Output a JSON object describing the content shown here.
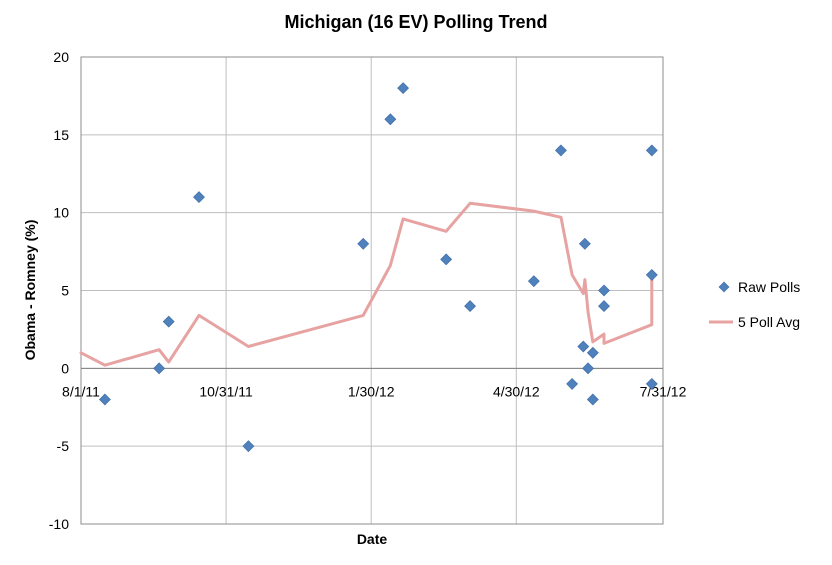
{
  "chart_data": {
    "type": "scatter",
    "title": "Michigan (16 EV) Polling Trend",
    "xlabel": "Date",
    "ylabel": "Obama - Romney (%)",
    "ylim": [
      -10,
      20
    ],
    "yticks": [
      -10,
      -5,
      0,
      5,
      10,
      15,
      20
    ],
    "xlim": [
      "2011-08-01",
      "2012-07-31"
    ],
    "xticks": [
      {
        "date": "2011-08-01",
        "label": "8/1/11"
      },
      {
        "date": "2011-10-31",
        "label": "10/31/11"
      },
      {
        "date": "2012-01-30",
        "label": "1/30/12"
      },
      {
        "date": "2012-04-30",
        "label": "4/30/12"
      },
      {
        "date": "2012-07-31",
        "label": "7/31/12"
      }
    ],
    "grid": true,
    "legend_position": "right",
    "series": [
      {
        "name": "Raw Polls",
        "kind": "scatter",
        "color": "#4f81bd",
        "marker": "diamond",
        "points": [
          {
            "x": "2011-08-16",
            "y": -2
          },
          {
            "x": "2011-09-19",
            "y": 0
          },
          {
            "x": "2011-09-25",
            "y": 3
          },
          {
            "x": "2011-10-14",
            "y": 11
          },
          {
            "x": "2011-11-14",
            "y": -5
          },
          {
            "x": "2012-01-25",
            "y": 8
          },
          {
            "x": "2012-02-11",
            "y": 16
          },
          {
            "x": "2012-02-19",
            "y": 18
          },
          {
            "x": "2012-03-17",
            "y": 7
          },
          {
            "x": "2012-04-01",
            "y": 4
          },
          {
            "x": "2012-05-11",
            "y": 5.6
          },
          {
            "x": "2012-05-28",
            "y": 14
          },
          {
            "x": "2012-06-04",
            "y": -1
          },
          {
            "x": "2012-06-11",
            "y": 1.4
          },
          {
            "x": "2012-06-12",
            "y": 8
          },
          {
            "x": "2012-06-14",
            "y": 0
          },
          {
            "x": "2012-06-17",
            "y": -2
          },
          {
            "x": "2012-06-17",
            "y": 1
          },
          {
            "x": "2012-06-24",
            "y": 4
          },
          {
            "x": "2012-06-24",
            "y": 5
          },
          {
            "x": "2012-07-24",
            "y": 14
          },
          {
            "x": "2012-07-24",
            "y": 6
          },
          {
            "x": "2012-07-24",
            "y": -1
          }
        ]
      },
      {
        "name": "5 Poll Avg",
        "kind": "line",
        "color": "#e6a3a1",
        "points": [
          {
            "x": "2011-08-01",
            "y": 1
          },
          {
            "x": "2011-08-16",
            "y": 0.2
          },
          {
            "x": "2011-09-19",
            "y": 1.2
          },
          {
            "x": "2011-09-25",
            "y": 0.4
          },
          {
            "x": "2011-10-14",
            "y": 3.4
          },
          {
            "x": "2011-11-14",
            "y": 1.4
          },
          {
            "x": "2012-01-25",
            "y": 3.4
          },
          {
            "x": "2012-02-11",
            "y": 6.6
          },
          {
            "x": "2012-02-19",
            "y": 9.6
          },
          {
            "x": "2012-03-17",
            "y": 8.8
          },
          {
            "x": "2012-04-01",
            "y": 10.6
          },
          {
            "x": "2012-05-11",
            "y": 10.1
          },
          {
            "x": "2012-05-28",
            "y": 9.7
          },
          {
            "x": "2012-06-04",
            "y": 6
          },
          {
            "x": "2012-06-11",
            "y": 4.8
          },
          {
            "x": "2012-06-12",
            "y": 5.7
          },
          {
            "x": "2012-06-14",
            "y": 3.6
          },
          {
            "x": "2012-06-17",
            "y": 1.7
          },
          {
            "x": "2012-06-17",
            "y": 1.7
          },
          {
            "x": "2012-06-24",
            "y": 2.2
          },
          {
            "x": "2012-06-24",
            "y": 1.6
          },
          {
            "x": "2012-07-24",
            "y": 2.8
          },
          {
            "x": "2012-07-24",
            "y": 5.8
          }
        ]
      }
    ]
  }
}
